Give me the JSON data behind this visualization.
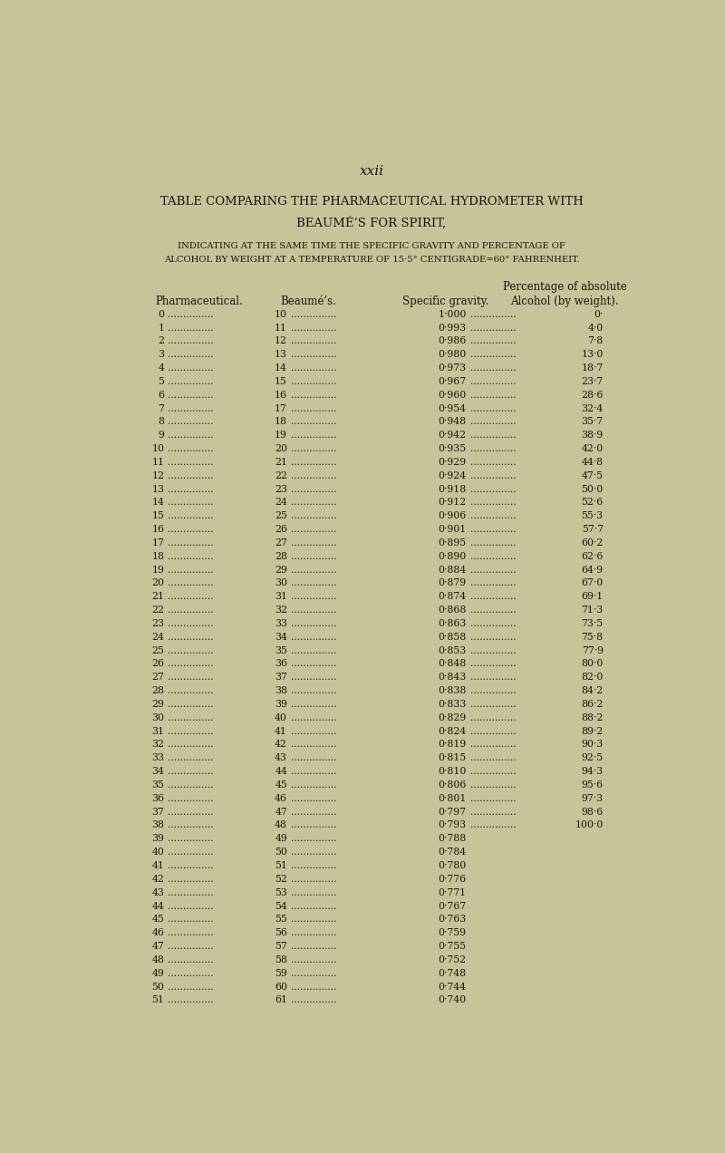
{
  "page_label": "xxii",
  "title_line1": "TABLE COMPARING THE PHARMACEUTICAL HYDROMETER WITH",
  "title_line2": "BEAUMÉ’S FOR SPIRIT,",
  "subtitle": "INDICATING AT THE SAME TIME THE SPECIFIC GRAVITY AND PERCENTAGE OF",
  "subtitle2": "ALCOHOL BY WEIGHT AT A TEMPERATURE OF 15·5° CENTIGRADE=60° FAHRENHEIT.",
  "rows": [
    [
      0,
      10,
      "1·000",
      "0·"
    ],
    [
      1,
      11,
      "0·993",
      "4·0"
    ],
    [
      2,
      12,
      "0·986",
      "7·8"
    ],
    [
      3,
      13,
      "0·980",
      "13·0"
    ],
    [
      4,
      14,
      "0·973",
      "18·7"
    ],
    [
      5,
      15,
      "0·967",
      "23·7"
    ],
    [
      6,
      16,
      "0·960",
      "28·6"
    ],
    [
      7,
      17,
      "0·954",
      "32·4"
    ],
    [
      8,
      18,
      "0·948",
      "35·7"
    ],
    [
      9,
      19,
      "0·942",
      "38·9"
    ],
    [
      10,
      20,
      "0·935",
      "42·0"
    ],
    [
      11,
      21,
      "0·929",
      "44·8"
    ],
    [
      12,
      22,
      "0·924",
      "47·5"
    ],
    [
      13,
      23,
      "0·918",
      "50·0"
    ],
    [
      14,
      24,
      "0·912",
      "52·6"
    ],
    [
      15,
      25,
      "0·906",
      "55·3"
    ],
    [
      16,
      26,
      "0·901",
      "57·7"
    ],
    [
      17,
      27,
      "0·895",
      "60·2"
    ],
    [
      18,
      28,
      "0·890",
      "62·6"
    ],
    [
      19,
      29,
      "0·884",
      "64·9"
    ],
    [
      20,
      30,
      "0·879",
      "67·0"
    ],
    [
      21,
      31,
      "0·874",
      "69·1"
    ],
    [
      22,
      32,
      "0·868",
      "71·3"
    ],
    [
      23,
      33,
      "0·863",
      "73·5"
    ],
    [
      24,
      34,
      "0·858",
      "75·8"
    ],
    [
      25,
      35,
      "0·853",
      "77·9"
    ],
    [
      26,
      36,
      "0·848",
      "80·0"
    ],
    [
      27,
      37,
      "0·843",
      "82·0"
    ],
    [
      28,
      38,
      "0·838",
      "84·2"
    ],
    [
      29,
      39,
      "0·833",
      "86·2"
    ],
    [
      30,
      40,
      "0·829",
      "88·2"
    ],
    [
      31,
      41,
      "0·824",
      "89·2"
    ],
    [
      32,
      42,
      "0·819",
      "90·3"
    ],
    [
      33,
      43,
      "0·815",
      "92·5"
    ],
    [
      34,
      44,
      "0·810",
      "94·3"
    ],
    [
      35,
      45,
      "0·806",
      "95·6"
    ],
    [
      36,
      46,
      "0·801",
      "97·3"
    ],
    [
      37,
      47,
      "0·797",
      "98·6"
    ],
    [
      38,
      48,
      "0·793",
      "100·0"
    ],
    [
      39,
      49,
      "0·788",
      ""
    ],
    [
      40,
      50,
      "0·784",
      ""
    ],
    [
      41,
      51,
      "0·780",
      ""
    ],
    [
      42,
      52,
      "0·776",
      ""
    ],
    [
      43,
      53,
      "0·771",
      ""
    ],
    [
      44,
      54,
      "0·767",
      ""
    ],
    [
      45,
      55,
      "0·763",
      ""
    ],
    [
      46,
      56,
      "0·759",
      ""
    ],
    [
      47,
      57,
      "0·755",
      ""
    ],
    [
      48,
      58,
      "0·752",
      ""
    ],
    [
      49,
      59,
      "0·748",
      ""
    ],
    [
      50,
      60,
      "0·744",
      ""
    ],
    [
      51,
      61,
      "0·740",
      ""
    ]
  ],
  "bg_color": "#c8c49a",
  "text_color": "#1a1408",
  "font_size_page": 11,
  "font_size_title": 9.5,
  "font_size_subtitle": 7.2,
  "font_size_data": 7.8,
  "font_size_header": 8.5
}
